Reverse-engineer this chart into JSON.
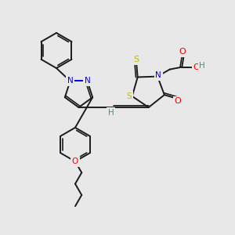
{
  "background_color": "#e8e8e8",
  "bond_color": "#1a1a1a",
  "atom_colors": {
    "N": "#0000ee",
    "O": "#ee0000",
    "S": "#bbbb00",
    "H": "#558888",
    "C": "#1a1a1a"
  },
  "figsize": [
    3.0,
    3.0
  ],
  "dpi": 100,
  "xlim": [
    0,
    10
  ],
  "ylim": [
    0,
    10
  ]
}
